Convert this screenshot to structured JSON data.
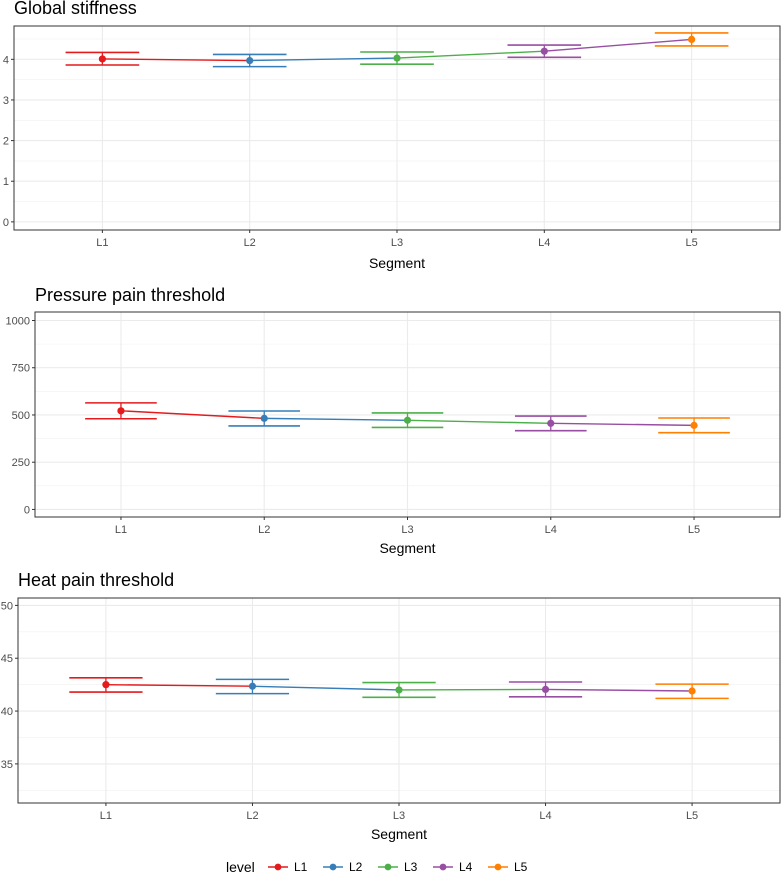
{
  "legend": {
    "title": "level",
    "placement": "bottom",
    "items": [
      {
        "label": "L1",
        "color": "#E41A1C"
      },
      {
        "label": "L2",
        "color": "#377EB8"
      },
      {
        "label": "L3",
        "color": "#4DAF4A"
      },
      {
        "label": "L4",
        "color": "#984EA3"
      },
      {
        "label": "L5",
        "color": "#FF7F00"
      }
    ]
  },
  "chart_data": [
    {
      "type": "line",
      "title": "Global stiffness",
      "xlabel": "Segment",
      "ylabel": "",
      "categories": [
        "L1",
        "L2",
        "L3",
        "L4",
        "L5"
      ],
      "values": [
        4.01,
        3.97,
        4.03,
        4.2,
        4.49
      ],
      "lower": [
        3.86,
        3.82,
        3.88,
        4.05,
        4.33
      ],
      "upper": [
        4.17,
        4.12,
        4.18,
        4.35,
        4.65
      ],
      "ylim": [
        -0.2,
        4.82
      ],
      "yticks": [
        0,
        1,
        2,
        3,
        4
      ],
      "ytick_labels": [
        "0",
        "1",
        "2",
        "3",
        "4"
      ]
    },
    {
      "type": "line",
      "title": "Pressure pain threshold",
      "xlabel": "Segment",
      "ylabel": "",
      "categories": [
        "L1",
        "L2",
        "L3",
        "L4",
        "L5"
      ],
      "values": [
        522,
        482,
        472,
        456,
        445
      ],
      "lower": [
        480,
        442,
        434,
        417,
        406
      ],
      "upper": [
        564,
        521,
        511,
        494,
        484
      ],
      "ylim": [
        -40,
        1045
      ],
      "yticks": [
        0,
        250,
        500,
        750,
        1000
      ],
      "ytick_labels": [
        "0",
        "250",
        "500",
        "750",
        "1000"
      ]
    },
    {
      "type": "line",
      "title": "Heat pain threshold",
      "xlabel": "Segment",
      "ylabel": "",
      "categories": [
        "L1",
        "L2",
        "L3",
        "L4",
        "L5"
      ],
      "values": [
        42.5,
        42.35,
        42.0,
        42.05,
        41.9
      ],
      "lower": [
        41.8,
        41.65,
        41.3,
        41.35,
        41.2
      ],
      "upper": [
        43.15,
        43.0,
        42.7,
        42.75,
        42.55
      ],
      "ylim": [
        31.3,
        50.7
      ],
      "yticks": [
        35,
        40,
        45,
        50
      ],
      "ytick_labels": [
        "35",
        "40",
        "45",
        "50"
      ]
    }
  ]
}
